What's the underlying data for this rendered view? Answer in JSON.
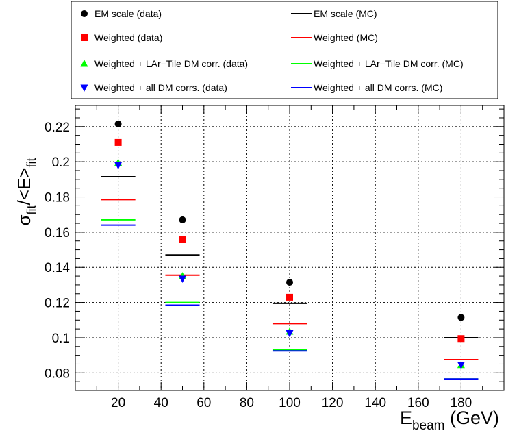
{
  "chart_data": {
    "type": "scatter",
    "xlabel_main": "E",
    "xlabel_sub": "beam",
    "xlabel_unit": " (GeV)",
    "ylabel_parts": {
      "sigma": "σ",
      "sub1": "fit",
      "mid": "/<E>",
      "sub2": "fit"
    },
    "xlim": [
      0,
      200
    ],
    "ylim": [
      0.07,
      0.232
    ],
    "grid": true,
    "x_ticks": [
      "20",
      "40",
      "60",
      "80",
      "100",
      "120",
      "140",
      "160",
      "180"
    ],
    "x_tick_values": [
      20,
      40,
      60,
      80,
      100,
      120,
      140,
      160,
      180
    ],
    "y_ticks": [
      "0.08",
      "0.1",
      "0.12",
      "0.14",
      "0.16",
      "0.18",
      "0.2",
      "0.22"
    ],
    "y_tick_values": [
      0.08,
      0.1,
      0.12,
      0.14,
      0.16,
      0.18,
      0.2,
      0.22
    ],
    "legend_placement": "top",
    "data_series": [
      {
        "name": "EM scale (data)",
        "marker": "circle",
        "color": "#000000",
        "x": [
          20,
          50,
          100,
          180
        ],
        "y": [
          0.2215,
          0.167,
          0.1315,
          0.1115
        ]
      },
      {
        "name": "Weighted (data)",
        "marker": "square",
        "color": "#ff0000",
        "x": [
          20,
          50,
          100,
          180
        ],
        "y": [
          0.211,
          0.156,
          0.123,
          0.0995
        ]
      },
      {
        "name": "Weighted + LAr−Tile DM corr. (data)",
        "marker": "triangle-up",
        "color": "#00ff00",
        "x": [
          20,
          50,
          100,
          180
        ],
        "y": [
          0.1995,
          0.135,
          0.1035,
          0.0845
        ]
      },
      {
        "name": "Weighted + all DM corrs. (data)",
        "marker": "triangle-down",
        "color": "#0000ff",
        "x": [
          20,
          50,
          100,
          180
        ],
        "y": [
          0.198,
          0.1335,
          0.1025,
          0.0845
        ]
      }
    ],
    "mc_series": [
      {
        "name": "EM scale (MC)",
        "color": "#000000",
        "x": [
          20,
          50,
          100,
          180
        ],
        "y": [
          0.1915,
          0.147,
          0.1195,
          0.1
        ]
      },
      {
        "name": "Weighted (MC)",
        "color": "#ff0000",
        "x": [
          20,
          50,
          100,
          180
        ],
        "y": [
          0.1785,
          0.1355,
          0.108,
          0.0875
        ]
      },
      {
        "name": "Weighted + LAr−Tile DM corr. (MC)",
        "color": "#00ff00",
        "x": [
          20,
          50,
          100,
          180
        ],
        "y": [
          0.167,
          0.12,
          0.093,
          0.0765
        ]
      },
      {
        "name": "Weighted + all DM corrs. (MC)",
        "color": "#0000ff",
        "x": [
          20,
          50,
          100,
          180
        ],
        "y": [
          0.164,
          0.1185,
          0.0925,
          0.0765
        ]
      }
    ]
  }
}
